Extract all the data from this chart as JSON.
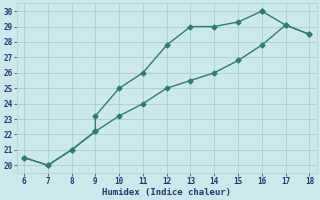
{
  "series1_x": [
    6,
    7,
    8,
    9,
    9,
    10,
    11,
    12,
    13,
    14,
    15,
    16
  ],
  "series1_y": [
    20.5,
    20.0,
    21.0,
    22.2,
    23.2,
    25.0,
    26.0,
    27.8,
    29.0,
    29.0,
    29.3,
    30.0
  ],
  "series2_x": [
    6,
    7,
    8,
    9,
    10,
    11,
    12,
    13,
    14,
    15,
    16,
    17,
    18
  ],
  "series2_y": [
    20.5,
    20.0,
    21.0,
    22.2,
    23.2,
    24.0,
    25.0,
    25.5,
    26.0,
    26.8,
    27.8,
    29.1,
    28.5
  ],
  "series3_x": [
    16,
    17,
    18
  ],
  "series3_y": [
    30.0,
    29.1,
    28.5
  ],
  "xlim": [
    5.7,
    18.3
  ],
  "ylim": [
    19.5,
    30.5
  ],
  "xticks": [
    6,
    7,
    8,
    9,
    10,
    11,
    12,
    13,
    14,
    15,
    16,
    17,
    18
  ],
  "yticks": [
    20,
    21,
    22,
    23,
    24,
    25,
    26,
    27,
    28,
    29,
    30
  ],
  "xlabel": "Humidex (Indice chaleur)",
  "line_color": "#2e7d6e",
  "marker": "D",
  "bg_color": "#cce8ec",
  "grid_color": "#aacdd4",
  "label_color": "#1a3a6e",
  "tick_color": "#1a3a6e",
  "marker_size": 2.5,
  "line_width": 1.0
}
